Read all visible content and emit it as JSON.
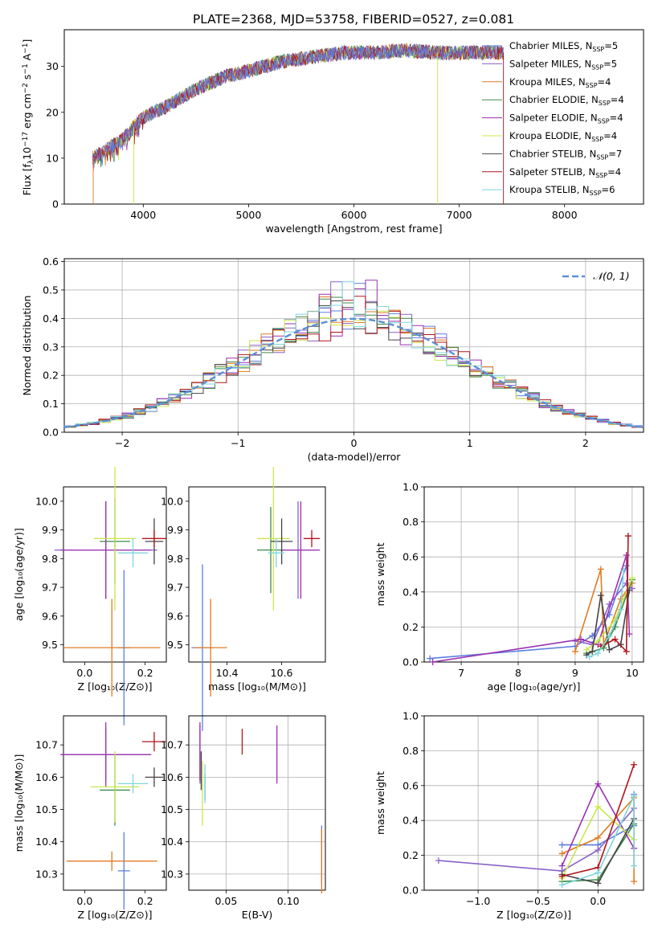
{
  "figure_title": "PLATE=2368, MJD=53758, FIBERID=0527, z=0.081",
  "series": [
    {
      "label": "Chabrier MILES, N",
      "sub": "SSP",
      "tail": "=5",
      "color": "#5b7ee0"
    },
    {
      "label": "Salpeter MILES, N",
      "sub": "SSP",
      "tail": "=5",
      "color": "#8b62c8"
    },
    {
      "label": "Kroupa MILES, N",
      "sub": "SSP",
      "tail": "=4",
      "color": "#e07b20"
    },
    {
      "label": "Chabrier ELODIE, N",
      "sub": "SSP",
      "tail": "=4",
      "color": "#3f8a4a"
    },
    {
      "label": "Salpeter ELODIE, N",
      "sub": "SSP",
      "tail": "=4",
      "color": "#9b30b0"
    },
    {
      "label": "Kroupa ELODIE, N",
      "sub": "SSP",
      "tail": "=4",
      "color": "#c8e84a"
    },
    {
      "label": "Chabrier STELIB, N",
      "sub": "SSP",
      "tail": "=7",
      "color": "#444444"
    },
    {
      "label": "Salpeter STELIB, N",
      "sub": "SSP",
      "tail": "=4",
      "color": "#b0151a"
    },
    {
      "label": "Kroupa STELIB, N",
      "sub": "SSP",
      "tail": "=6",
      "color": "#7fd6dc"
    }
  ],
  "chart_data": [
    {
      "type": "line",
      "name": "spectrum",
      "xlabel": "wavelength [Angstrom, rest frame]",
      "ylabel_parts": {
        "a": "Flux [f",
        "b": "λ",
        "c": "10",
        "d": "−17",
        "e": " erg cm",
        "f": "−2",
        "g": " s",
        "h": "−1",
        "i": " A",
        "j": "−1",
        "k": "]"
      },
      "xlim": [
        3250,
        8750
      ],
      "ylim": [
        0,
        38
      ],
      "xticks": [
        4000,
        5000,
        6000,
        7000,
        8000
      ],
      "yticks": [
        0,
        10,
        20,
        30
      ],
      "x_start": 3520,
      "x_end": 7420,
      "continuum": [
        [
          3520,
          10
        ],
        [
          3800,
          14
        ],
        [
          4000,
          19
        ],
        [
          4200,
          21
        ],
        [
          4500,
          25
        ],
        [
          4800,
          28
        ],
        [
          5000,
          29
        ],
        [
          5300,
          31
        ],
        [
          5600,
          32
        ],
        [
          5900,
          33
        ],
        [
          6200,
          33
        ],
        [
          6500,
          33.5
        ],
        [
          6800,
          33
        ],
        [
          7100,
          33
        ],
        [
          7420,
          33
        ]
      ]
    },
    {
      "type": "line",
      "name": "residual-histogram",
      "xlabel": "(data-model)/error",
      "ylabel": "Normed distribution",
      "xlim": [
        -2.5,
        2.5
      ],
      "ylim": [
        0,
        0.61
      ],
      "xticks": [
        -2,
        -1,
        0,
        1,
        2
      ],
      "yticks": [
        0.0,
        0.1,
        0.2,
        0.3,
        0.4,
        0.5,
        0.6
      ],
      "grid": true,
      "legend_label": "𝒩(0, 1)",
      "legend_position": "top-right",
      "bin_width": 0.1
    },
    {
      "type": "scatter",
      "name": "age-vs-Z",
      "xlabel": "Z [log₁₀(Z/Z⊙)]",
      "ylabel": "age  [log₁₀(age/yr)]",
      "xlim": [
        -0.07,
        0.27
      ],
      "ylim": [
        9.44,
        10.05
      ],
      "xticks": [
        0.0,
        0.2
      ],
      "yticks": [
        9.5,
        9.6,
        9.7,
        9.8,
        9.9,
        10.0
      ],
      "grid": false,
      "points": [
        {
          "s": 0,
          "x": 0.13,
          "xerr": 0.02,
          "y": 9.49,
          "yerr": 0.27
        },
        {
          "s": 1,
          "x": 0.07,
          "xerr": 0.17,
          "y": 9.83,
          "yerr": 0.17
        },
        {
          "s": 2,
          "x": 0.09,
          "xerr": 0.16,
          "y": 9.49,
          "yerr": 0.17
        },
        {
          "s": 3,
          "x": 0.1,
          "xerr": 0.05,
          "y": 9.86,
          "yerr": 0.15
        },
        {
          "s": 4,
          "x": 0.07,
          "xerr": 0.15,
          "y": 9.83,
          "yerr": 0.17
        },
        {
          "s": 5,
          "x": 0.1,
          "xerr": 0.07,
          "y": 9.87,
          "yerr": 0.25
        },
        {
          "s": 6,
          "x": 0.23,
          "xerr": 0.03,
          "y": 9.86,
          "yerr": 0.08
        },
        {
          "s": 7,
          "x": 0.23,
          "xerr": 0.04,
          "y": 9.87,
          "yerr": 0.03
        },
        {
          "s": 8,
          "x": 0.16,
          "xerr": 0.05,
          "y": 9.82,
          "yerr": 0.05
        }
      ]
    },
    {
      "type": "scatter",
      "name": "age-vs-mass",
      "xlabel": "mass [log₁₀(M/M⊙)]",
      "ylabel": "",
      "xlim": [
        10.26,
        10.76
      ],
      "ylim": [
        9.44,
        10.05
      ],
      "xticks": [
        10.4,
        10.6
      ],
      "yticks": [
        9.5,
        9.6,
        9.7,
        9.8,
        9.9,
        10.0
      ],
      "grid": false,
      "points": [
        {
          "s": 0,
          "x": 10.31,
          "xerr": 0.04,
          "y": 9.49,
          "yerr": 0.29
        },
        {
          "s": 1,
          "x": 10.66,
          "xerr": 0.07,
          "y": 9.83,
          "yerr": 0.17
        },
        {
          "s": 2,
          "x": 10.34,
          "xerr": 0.06,
          "y": 9.49,
          "yerr": 0.17
        },
        {
          "s": 3,
          "x": 10.56,
          "xerr": 0.05,
          "y": 9.83,
          "yerr": 0.15
        },
        {
          "s": 4,
          "x": 10.67,
          "xerr": 0.07,
          "y": 9.83,
          "yerr": 0.17
        },
        {
          "s": 5,
          "x": 10.57,
          "xerr": 0.06,
          "y": 9.87,
          "yerr": 0.25
        },
        {
          "s": 6,
          "x": 10.6,
          "xerr": 0.04,
          "y": 9.86,
          "yerr": 0.08
        },
        {
          "s": 7,
          "x": 10.71,
          "xerr": 0.03,
          "y": 9.87,
          "yerr": 0.03
        },
        {
          "s": 8,
          "x": 10.58,
          "xerr": 0.03,
          "y": 9.82,
          "yerr": 0.05
        }
      ]
    },
    {
      "type": "line",
      "name": "mass-weight-vs-age",
      "xlabel": "age  [log₁₀(age/yr)]",
      "ylabel": "mass weight",
      "xlim": [
        6.35,
        10.2
      ],
      "ylim": [
        0.0,
        1.0
      ],
      "xticks": [
        7,
        8,
        9,
        10
      ],
      "yticks": [
        0.0,
        0.2,
        0.4,
        0.6,
        0.8,
        1.0
      ],
      "grid": true,
      "lines": [
        {
          "s": 0,
          "pts": [
            [
              6.45,
              0.02
            ],
            [
              9.0,
              0.09
            ],
            [
              9.3,
              0.15
            ],
            [
              9.6,
              0.27
            ],
            [
              9.9,
              0.55
            ]
          ]
        },
        {
          "s": 1,
          "pts": [
            [
              9.0,
              0.12
            ],
            [
              9.3,
              0.1
            ],
            [
              9.6,
              0.33
            ],
            [
              9.9,
              0.45
            ],
            [
              10.0,
              0.42
            ]
          ]
        },
        {
          "s": 2,
          "pts": [
            [
              9.0,
              0.06
            ],
            [
              9.45,
              0.53
            ],
            [
              9.5,
              0.1
            ],
            [
              9.8,
              0.36
            ],
            [
              10.0,
              0.45
            ]
          ]
        },
        {
          "s": 3,
          "pts": [
            [
              9.2,
              0.05
            ],
            [
              9.5,
              0.08
            ],
            [
              9.7,
              0.2
            ],
            [
              10.0,
              0.47
            ]
          ]
        },
        {
          "s": 4,
          "pts": [
            [
              6.5,
              0.0
            ],
            [
              9.1,
              0.13
            ],
            [
              9.4,
              0.1
            ],
            [
              9.9,
              0.61
            ],
            [
              9.95,
              0.16
            ]
          ]
        },
        {
          "s": 5,
          "pts": [
            [
              9.2,
              0.07
            ],
            [
              9.4,
              0.12
            ],
            [
              9.7,
              0.24
            ],
            [
              10.0,
              0.48
            ]
          ]
        },
        {
          "s": 6,
          "pts": [
            [
              9.2,
              0.04
            ],
            [
              9.3,
              0.06
            ],
            [
              9.45,
              0.38
            ],
            [
              9.6,
              0.07
            ],
            [
              9.8,
              0.1
            ],
            [
              9.95,
              0.41
            ]
          ]
        },
        {
          "s": 7,
          "pts": [
            [
              9.45,
              0.09
            ],
            [
              9.7,
              0.13
            ],
            [
              9.9,
              0.06
            ],
            [
              9.93,
              0.72
            ]
          ]
        },
        {
          "s": 8,
          "pts": [
            [
              9.25,
              0.03
            ],
            [
              9.4,
              0.05
            ],
            [
              9.6,
              0.15
            ],
            [
              9.8,
              0.3
            ],
            [
              9.85,
              0.52
            ]
          ]
        }
      ]
    },
    {
      "type": "scatter",
      "name": "mass-vs-Z",
      "xlabel": "Z [log₁₀(Z/Z⊙)]",
      "ylabel": "mass [log₁₀(M/M⊙)]",
      "xlim": [
        -0.07,
        0.27
      ],
      "ylim": [
        10.25,
        10.79
      ],
      "xticks": [
        0.0,
        0.2
      ],
      "yticks": [
        10.3,
        10.4,
        10.5,
        10.6,
        10.7
      ],
      "grid": false,
      "points": [
        {
          "s": 0,
          "x": 0.13,
          "xerr": 0.02,
          "y": 10.31,
          "yerr": 0.12
        },
        {
          "s": 1,
          "x": 0.07,
          "xerr": 0.15,
          "y": 10.67,
          "yerr": 0.08
        },
        {
          "s": 2,
          "x": 0.09,
          "xerr": 0.15,
          "y": 10.34,
          "yerr": 0.03
        },
        {
          "s": 3,
          "x": 0.1,
          "xerr": 0.05,
          "y": 10.56,
          "yerr": 0.11
        },
        {
          "s": 4,
          "x": 0.07,
          "xerr": 0.15,
          "y": 10.67,
          "yerr": 0.1
        },
        {
          "s": 5,
          "x": 0.1,
          "xerr": 0.08,
          "y": 10.57,
          "yerr": 0.11
        },
        {
          "s": 6,
          "x": 0.23,
          "xerr": 0.03,
          "y": 10.6,
          "yerr": 0.03
        },
        {
          "s": 7,
          "x": 0.23,
          "xerr": 0.04,
          "y": 10.71,
          "yerr": 0.03
        },
        {
          "s": 8,
          "x": 0.16,
          "xerr": 0.05,
          "y": 10.58,
          "yerr": 0.03
        }
      ]
    },
    {
      "type": "scatter",
      "name": "mass-vs-ebv",
      "xlabel": "E(B-V)",
      "ylabel": "",
      "xlim": [
        0.02,
        0.13
      ],
      "ylim": [
        10.25,
        10.79
      ],
      "xticks": [
        0.05,
        0.1
      ],
      "yticks": [
        10.3,
        10.4,
        10.5,
        10.6,
        10.7
      ],
      "grid": true,
      "points": [
        {
          "s": 0,
          "x": 0.127,
          "xerr": 0,
          "y": 10.36,
          "yerr": 0.09
        },
        {
          "s": 1,
          "x": 0.029,
          "xerr": 0,
          "y": 10.67,
          "yerr": 0.09
        },
        {
          "s": 2,
          "x": 0.127,
          "xerr": 0,
          "y": 10.34,
          "yerr": 0.1
        },
        {
          "s": 3,
          "x": 0.033,
          "xerr": 0,
          "y": 10.57,
          "yerr": 0.04
        },
        {
          "s": 4,
          "x": 0.029,
          "xerr": 0,
          "y": 10.68,
          "yerr": 0.09
        },
        {
          "s": 5,
          "x": 0.031,
          "xerr": 0,
          "y": 10.55,
          "yerr": 0.1
        },
        {
          "s": 6,
          "x": 0.03,
          "xerr": 0,
          "y": 10.62,
          "yerr": 0.06
        },
        {
          "s": 7,
          "x": 0.063,
          "xerr": 0,
          "y": 10.71,
          "yerr": 0.04
        },
        {
          "s": 8,
          "x": 0.033,
          "xerr": 0,
          "y": 10.58,
          "yerr": 0.06
        },
        {
          "s": 4,
          "x": 0.091,
          "xerr": 0,
          "y": 10.67,
          "yerr": 0.09
        }
      ]
    },
    {
      "type": "line",
      "name": "mass-weight-vs-Z",
      "xlabel": "Z [log₁₀(Z/Z⊙)]",
      "ylabel": "mass weight",
      "xlim": [
        -1.45,
        0.38
      ],
      "ylim": [
        0.0,
        1.0
      ],
      "xticks": [
        -1.0,
        -0.5,
        0.0
      ],
      "yticks": [
        0.0,
        0.2,
        0.4,
        0.6,
        0.8,
        1.0
      ],
      "grid": true,
      "lines": [
        {
          "s": 0,
          "pts": [
            [
              -0.3,
              0.26
            ],
            [
              0.0,
              0.26
            ],
            [
              0.3,
              0.37
            ],
            [
              0.3,
              0.55
            ]
          ]
        },
        {
          "s": 1,
          "pts": [
            [
              -1.33,
              0.17
            ],
            [
              -0.3,
              0.11
            ],
            [
              0.0,
              0.23
            ],
            [
              0.3,
              0.47
            ]
          ]
        },
        {
          "s": 2,
          "pts": [
            [
              -0.3,
              0.21
            ],
            [
              0.0,
              0.3
            ],
            [
              0.3,
              0.53
            ],
            [
              0.3,
              0.05
            ]
          ]
        },
        {
          "s": 3,
          "pts": [
            [
              -0.3,
              0.05
            ],
            [
              0.0,
              0.06
            ],
            [
              0.3,
              0.38
            ]
          ]
        },
        {
          "s": 4,
          "pts": [
            [
              -0.3,
              0.14
            ],
            [
              0.0,
              0.61
            ],
            [
              0.3,
              0.24
            ]
          ]
        },
        {
          "s": 5,
          "pts": [
            [
              -0.3,
              0.07
            ],
            [
              0.0,
              0.48
            ],
            [
              0.3,
              0.29
            ]
          ]
        },
        {
          "s": 6,
          "pts": [
            [
              -0.3,
              0.09
            ],
            [
              0.0,
              0.04
            ],
            [
              0.3,
              0.41
            ]
          ]
        },
        {
          "s": 7,
          "pts": [
            [
              -0.3,
              0.08
            ],
            [
              0.0,
              0.13
            ],
            [
              0.3,
              0.72
            ]
          ]
        },
        {
          "s": 8,
          "pts": [
            [
              -0.3,
              0.03
            ],
            [
              0.0,
              0.1
            ],
            [
              0.3,
              0.54
            ],
            [
              0.3,
              0.14
            ]
          ]
        }
      ]
    }
  ]
}
